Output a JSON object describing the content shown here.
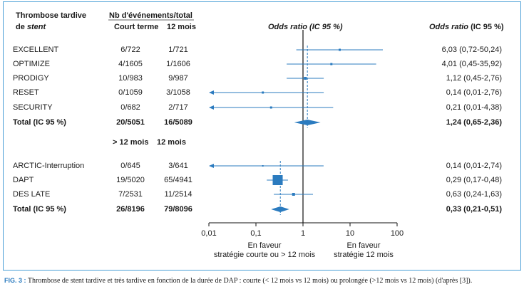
{
  "headers": {
    "study_title_line1": "Thrombose tardive",
    "study_title_line2_prefix": "de ",
    "study_title_line2_italic": "stent",
    "events_header": "Nb d'événements/total",
    "col_short": "Court terme",
    "col_12": "12 mois",
    "col_long": "> 12 mois",
    "col_12b": "12 mois",
    "plot_title": "Odds ratio (IC 95 %)",
    "right_title_italic": "Odds ratio",
    "right_title_rest": " (IC 95 %)"
  },
  "rows": [
    {
      "name": "EXCELLENT",
      "a": "6/722",
      "b": "1/721",
      "ci": "6,03 (0,72-50,24)",
      "bold": false
    },
    {
      "name": "OPTIMIZE",
      "a": "4/1605",
      "b": "1/1606",
      "ci": "4,01 (0,45-35,92)",
      "bold": false
    },
    {
      "name": "PRODIGY",
      "a": "10/983",
      "b": "9/987",
      "ci": "1,12 (0,45-2,76)",
      "bold": false
    },
    {
      "name": "RESET",
      "a": "0/1059",
      "b": "3/1058",
      "ci": "0,14 (0,01-2,76)",
      "bold": false
    },
    {
      "name": "SECURITY",
      "a": "0/682",
      "b": "2/717",
      "ci": "0,21 (0,01-4,38)",
      "bold": false
    },
    {
      "name": "Total (IC 95 %)",
      "a": "20/5051",
      "b": "16/5089",
      "ci": "1,24 (0,65-2,36)",
      "bold": true
    },
    {
      "name": "ARCTIC-Interruption",
      "a": "0/645",
      "b": "3/641",
      "ci": "0,14 (0,01-2,74)",
      "bold": false
    },
    {
      "name": "DAPT",
      "a": "19/5020",
      "b": "65/4941",
      "ci": "0,29 (0,17-0,48)",
      "bold": false
    },
    {
      "name": "DES LATE",
      "a": "7/2531",
      "b": "11/2514",
      "ci": "0,63 (0,24-1,63)",
      "bold": false
    },
    {
      "name": "Total (IC 95 %)",
      "a": "26/8196",
      "b": "79/8096",
      "ci": "0,33 (0,21-0,51)",
      "bold": true
    }
  ],
  "axis": {
    "ticks": [
      "0,01",
      "0,1",
      "1",
      "10",
      "100"
    ],
    "favor_left_line1": "En faveur",
    "favor_left_line2": "stratégie courte ou > 12 mois",
    "favor_right_line1": "En faveur",
    "favor_right_line2": "stratégie  12 mois"
  },
  "caption": {
    "label": "FIG. 3 :",
    "text": " Thrombose de stent tardive et très tardive en fonction de la durée de DAP : courte (< 12 mois vs 12 mois) ou prolongée (>12 mois vs 12 mois) (d'après [3])."
  },
  "colors": {
    "accent": "#2b7bbf",
    "frame": "#4a9fd6",
    "text": "#1a1a1a"
  },
  "chart_data": {
    "type": "forest",
    "xscale": "log",
    "xlim": [
      0.01,
      100
    ],
    "reference": 1,
    "series": [
      {
        "name": "EXCELLENT",
        "or": 6.03,
        "lo": 0.72,
        "hi": 50.24,
        "kind": "study"
      },
      {
        "name": "OPTIMIZE",
        "or": 4.01,
        "lo": 0.45,
        "hi": 35.92,
        "kind": "study"
      },
      {
        "name": "PRODIGY",
        "or": 1.12,
        "lo": 0.45,
        "hi": 2.76,
        "kind": "study"
      },
      {
        "name": "RESET",
        "or": 0.14,
        "lo": 0.01,
        "hi": 2.76,
        "kind": "study"
      },
      {
        "name": "SECURITY",
        "or": 0.21,
        "lo": 0.01,
        "hi": 4.38,
        "kind": "study"
      },
      {
        "name": "Total (IC 95 %)",
        "or": 1.24,
        "lo": 0.65,
        "hi": 2.36,
        "kind": "total"
      },
      {
        "name": "ARCTIC-Interruption",
        "or": 0.14,
        "lo": 0.01,
        "hi": 2.74,
        "kind": "study"
      },
      {
        "name": "DAPT",
        "or": 0.29,
        "lo": 0.17,
        "hi": 0.48,
        "kind": "study"
      },
      {
        "name": "DES LATE",
        "or": 0.63,
        "lo": 0.24,
        "hi": 1.63,
        "kind": "study"
      },
      {
        "name": "Total (IC 95 %)",
        "or": 0.33,
        "lo": 0.21,
        "hi": 0.51,
        "kind": "total"
      }
    ],
    "pooled_lines": [
      1.24,
      0.33
    ]
  }
}
